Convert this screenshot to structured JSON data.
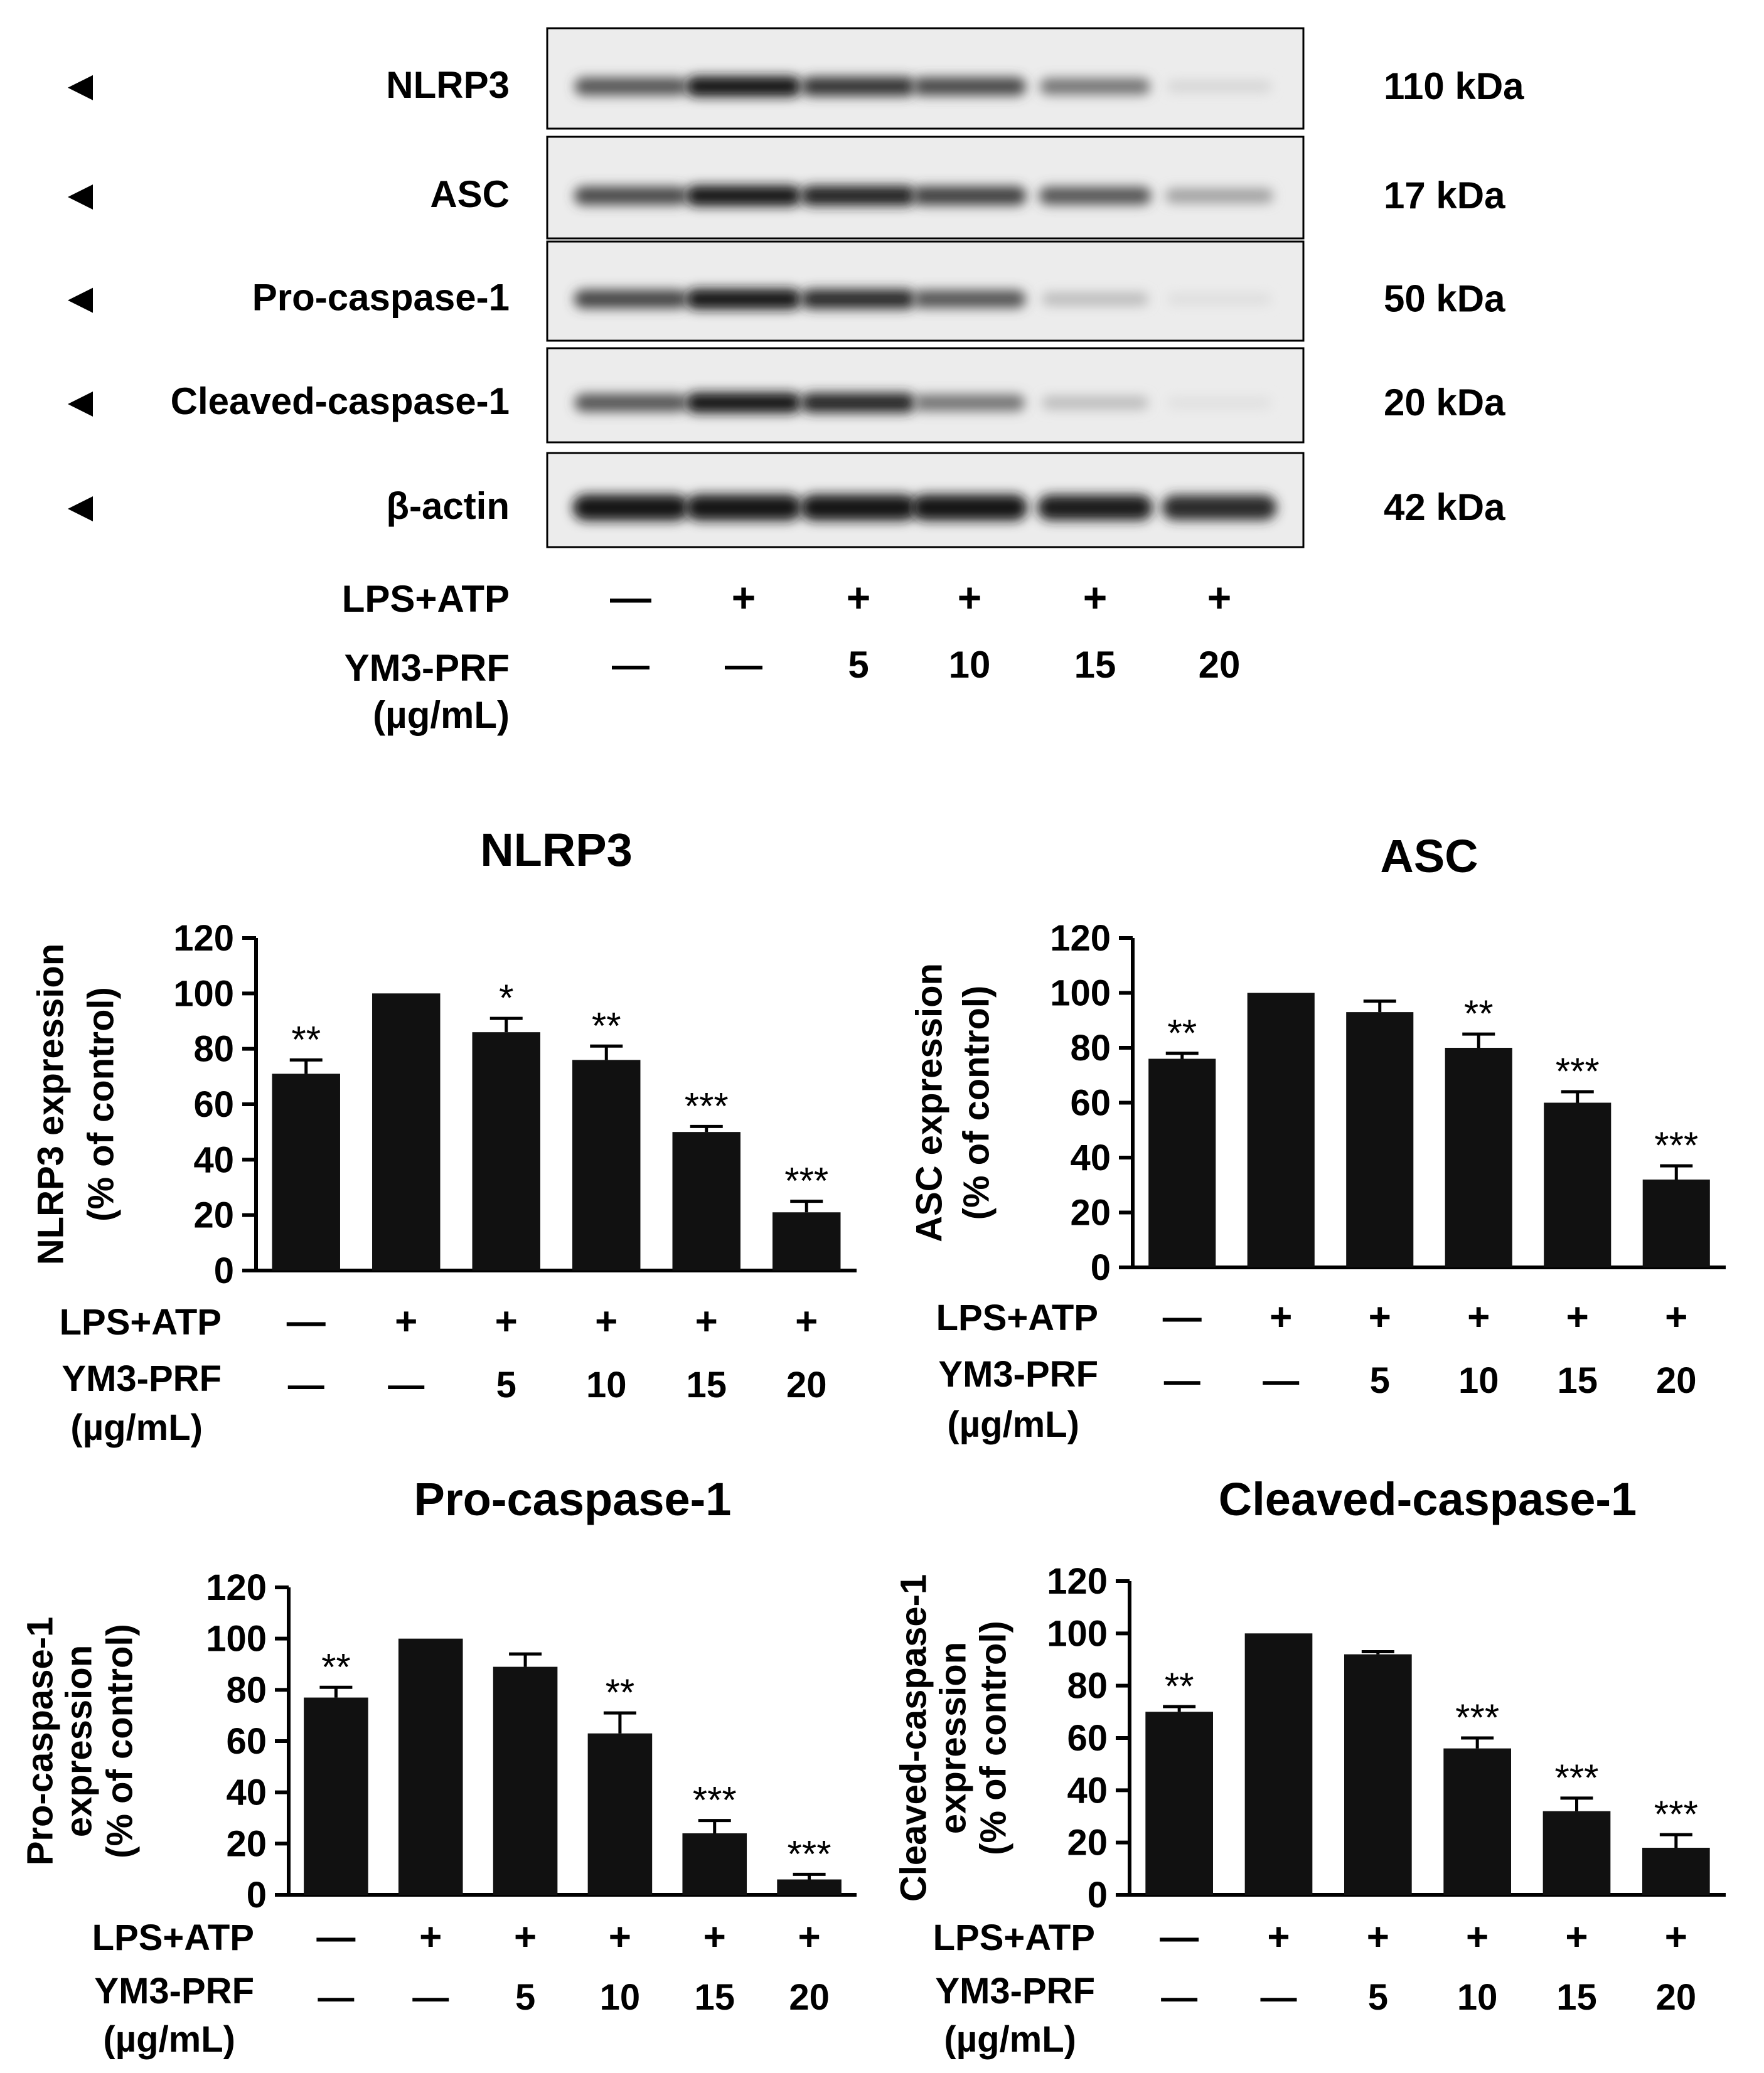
{
  "western_blot": {
    "rows": [
      {
        "protein": "NLRP3",
        "size": "110 kDa"
      },
      {
        "protein": "ASC",
        "size": "17 kDa"
      },
      {
        "protein": "Pro-caspase-1",
        "size": "50 kDa"
      },
      {
        "protein": "Cleaved-caspase-1",
        "size": "20 kDa"
      },
      {
        "protein": "β-actin",
        "size": "42 kDa"
      }
    ],
    "band_intensity_relative": [
      [
        0.7,
        1.0,
        0.85,
        0.75,
        0.55,
        0.1
      ],
      [
        0.76,
        1.0,
        0.93,
        0.8,
        0.7,
        0.35
      ],
      [
        0.77,
        1.0,
        0.9,
        0.7,
        0.22,
        0.06
      ],
      [
        0.7,
        1.0,
        0.92,
        0.56,
        0.22,
        0.05
      ],
      [
        1.0,
        1.0,
        1.0,
        1.0,
        0.95,
        0.9
      ]
    ],
    "treatment": {
      "lps_label": "LPS+ATP",
      "lps_values": [
        "—",
        "+",
        "+",
        "+",
        "+",
        "+"
      ],
      "ym3_label": "YM3-PRF",
      "ym3_unit": "(µg/mL)",
      "ym3_values": [
        "—",
        "—",
        "5",
        "10",
        "15",
        "20"
      ]
    }
  },
  "chart_data": [
    {
      "type": "bar",
      "title": "NLRP3",
      "ylabel_line1": "NLRP3 expression",
      "ylabel_line2": "(% of control)",
      "ylim": [
        0,
        120
      ],
      "yticks": [
        "0",
        "20",
        "40",
        "60",
        "80",
        "100",
        "120"
      ],
      "values": [
        71,
        100,
        86,
        76,
        50,
        21
      ],
      "errors": [
        5,
        0,
        5,
        5,
        2,
        4
      ],
      "significance": [
        "**",
        "",
        "*",
        "**",
        "***",
        "***"
      ],
      "lps_label": "LPS+ATP",
      "lps_values": [
        "—",
        "+",
        "+",
        "+",
        "+",
        "+"
      ],
      "ym3_label": "YM3-PRF",
      "ym3_unit": "(µg/mL)",
      "ym3_values": [
        "—",
        "—",
        "5",
        "10",
        "15",
        "20"
      ]
    },
    {
      "type": "bar",
      "title": "ASC",
      "ylabel_line1": "ASC expression",
      "ylabel_line2": "(% of control)",
      "ylim": [
        0,
        120
      ],
      "yticks": [
        "0",
        "20",
        "40",
        "60",
        "80",
        "100",
        "120"
      ],
      "values": [
        76,
        100,
        93,
        80,
        60,
        32
      ],
      "errors": [
        2,
        0,
        4,
        5,
        4,
        5
      ],
      "significance": [
        "**",
        "",
        "",
        "**",
        "***",
        "***"
      ],
      "lps_label": "LPS+ATP",
      "lps_values": [
        "—",
        "+",
        "+",
        "+",
        "+",
        "+"
      ],
      "ym3_label": "YM3-PRF",
      "ym3_unit": "(µg/mL)",
      "ym3_values": [
        "—",
        "—",
        "5",
        "10",
        "15",
        "20"
      ]
    },
    {
      "type": "bar",
      "title": "Pro-caspase-1",
      "ylabel_line1": "Pro-caspase-1",
      "ylabel_line2": "expression",
      "ylabel_line3": "(% of control)",
      "ylim": [
        0,
        120
      ],
      "yticks": [
        "0",
        "20",
        "40",
        "60",
        "80",
        "100",
        "120"
      ],
      "values": [
        77,
        100,
        89,
        63,
        24,
        6
      ],
      "errors": [
        4,
        0,
        5,
        8,
        5,
        2
      ],
      "significance": [
        "**",
        "",
        "",
        "**",
        "***",
        "***"
      ],
      "lps_label": "LPS+ATP",
      "lps_values": [
        "—",
        "+",
        "+",
        "+",
        "+",
        "+"
      ],
      "ym3_label": "YM3-PRF",
      "ym3_unit": "(µg/mL)",
      "ym3_values": [
        "—",
        "—",
        "5",
        "10",
        "15",
        "20"
      ]
    },
    {
      "type": "bar",
      "title": "Cleaved-caspase-1",
      "ylabel_line1": "Cleaved-caspase-1",
      "ylabel_line2": "expression",
      "ylabel_line3": "(% of control)",
      "ylim": [
        0,
        120
      ],
      "yticks": [
        "0",
        "20",
        "40",
        "60",
        "80",
        "100",
        "120"
      ],
      "values": [
        70,
        100,
        92,
        56,
        32,
        18
      ],
      "errors": [
        2,
        0,
        1,
        4,
        5,
        5
      ],
      "significance": [
        "**",
        "",
        "",
        "***",
        "***",
        "***"
      ],
      "lps_label": "LPS+ATP",
      "lps_values": [
        "—",
        "+",
        "+",
        "+",
        "+",
        "+"
      ],
      "ym3_label": "YM3-PRF",
      "ym3_unit": "(µg/mL)",
      "ym3_values": [
        "—",
        "—",
        "5",
        "10",
        "15",
        "20"
      ]
    }
  ]
}
